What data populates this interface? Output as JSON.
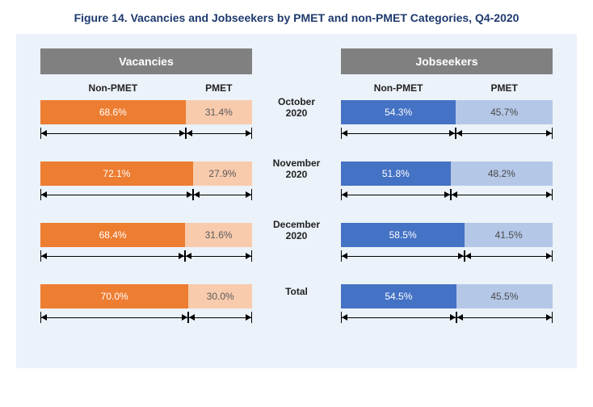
{
  "title": "Figure 14. Vacancies and Jobseekers by PMET and non-PMET Categories, Q4-2020",
  "title_color": "#1e3a6e",
  "title_fontsize": 14,
  "panel_bg": "#ebf2f9",
  "header_bg": "#808080",
  "header_text_color": "#ffffff",
  "label_color": "#222222",
  "columns": {
    "left": {
      "header": "Vacancies",
      "sub_left": "Non-PMET",
      "sub_right": "PMET",
      "seg_left_color": "#ed7d31",
      "seg_right_color": "#f8cbad",
      "seg_right_text_color": "#5a5a5a",
      "rows": [
        {
          "left_pct": 68.6,
          "right_pct": 31.4,
          "left_label": "68.6%",
          "right_label": "31.4%"
        },
        {
          "left_pct": 72.1,
          "right_pct": 27.9,
          "left_label": "72.1%",
          "right_label": "27.9%"
        },
        {
          "left_pct": 68.4,
          "right_pct": 31.6,
          "left_label": "68.4%",
          "right_label": "31.6%"
        },
        {
          "left_pct": 70.0,
          "right_pct": 30.0,
          "left_label": "70.0%",
          "right_label": "30.0%"
        }
      ]
    },
    "right": {
      "header": "Jobseekers",
      "sub_left": "Non-PMET",
      "sub_right": "PMET",
      "seg_left_color": "#4472c4",
      "seg_right_color": "#b4c7e7",
      "seg_right_text_color": "#4a4a4a",
      "rows": [
        {
          "left_pct": 54.3,
          "right_pct": 45.7,
          "left_label": "54.3%",
          "right_label": "45.7%"
        },
        {
          "left_pct": 51.8,
          "right_pct": 48.2,
          "left_label": "51.8%",
          "right_label": "48.2%"
        },
        {
          "left_pct": 58.5,
          "right_pct": 41.5,
          "left_label": "58.5%",
          "right_label": "41.5%"
        },
        {
          "left_pct": 54.5,
          "right_pct": 45.5,
          "left_label": "54.5%",
          "right_label": "45.5%"
        }
      ]
    }
  },
  "row_labels": [
    {
      "line1": "October",
      "line2": "2020"
    },
    {
      "line1": "November",
      "line2": "2020"
    },
    {
      "line1": "December",
      "line2": "2020"
    },
    {
      "line1": "Total",
      "line2": ""
    }
  ]
}
